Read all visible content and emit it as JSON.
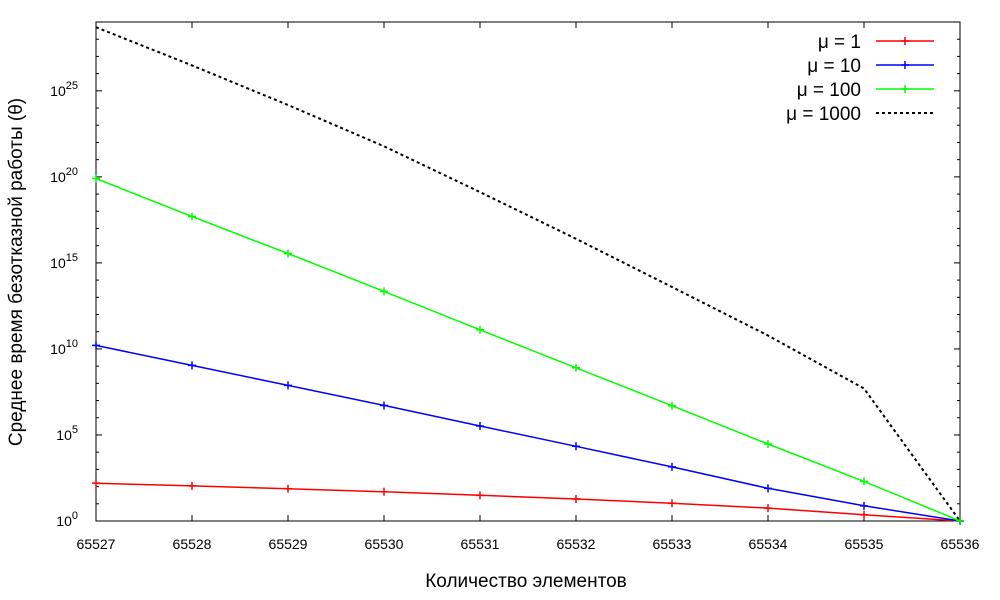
{
  "chart_data": {
    "type": "line",
    "title": "",
    "xlabel": "Количество элементов",
    "ylabel": "Среднее время безотказной работы (θ)",
    "x": [
      65527,
      65528,
      65529,
      65530,
      65531,
      65532,
      65533,
      65534,
      65535,
      65536
    ],
    "xlim": [
      65527,
      65536
    ],
    "ylim_log10": [
      0,
      29
    ],
    "y_scale": "log",
    "y_ticks": [
      {
        "base": "10",
        "exp": "0",
        "value": 1
      },
      {
        "base": "10",
        "exp": "5",
        "value": 100000
      },
      {
        "base": "10",
        "exp": "10",
        "value": 10000000000
      },
      {
        "base": "10",
        "exp": "15",
        "value": 1000000000000000.0
      },
      {
        "base": "10",
        "exp": "20",
        "value": 1e+20
      },
      {
        "base": "10",
        "exp": "25",
        "value": 1e+25
      }
    ],
    "x_ticks": [
      "65527",
      "65528",
      "65529",
      "65530",
      "65531",
      "65532",
      "65533",
      "65534",
      "65535",
      "65536"
    ],
    "legend_position": "top-right",
    "grid": false,
    "series": [
      {
        "name": "μ = 1",
        "color": "#ff0000",
        "dash": false,
        "markers": true,
        "values": [
          158,
          110,
          75,
          50,
          31,
          19,
          10.8,
          5.6,
          2.3,
          1
        ]
      },
      {
        "name": "μ = 10",
        "color": "#0000ff",
        "dash": false,
        "markers": true,
        "values": [
          16000000000.0,
          1100000000.0,
          76000000.0,
          5200000.0,
          330000.0,
          22000.0,
          1400,
          79,
          7.6,
          1
        ]
      },
      {
        "name": "μ = 100",
        "color": "#00ff00",
        "dash": false,
        "markers": true,
        "values": [
          8e+19,
          5e+17,
          3500000000000000.0,
          22000000000000.0,
          130000000000.0,
          800000000.0,
          5000000.0,
          30000.0,
          200,
          1
        ]
      },
      {
        "name": "μ = 1000",
        "color": "#000000",
        "dash": true,
        "markers": false,
        "values": [
          5e+28,
          3e+26,
          1.5e+24,
          6e+21,
          1.3e+19,
          2.5e+16,
          40000000000000.0,
          60000000000.0,
          50000000.0,
          1
        ]
      }
    ]
  }
}
